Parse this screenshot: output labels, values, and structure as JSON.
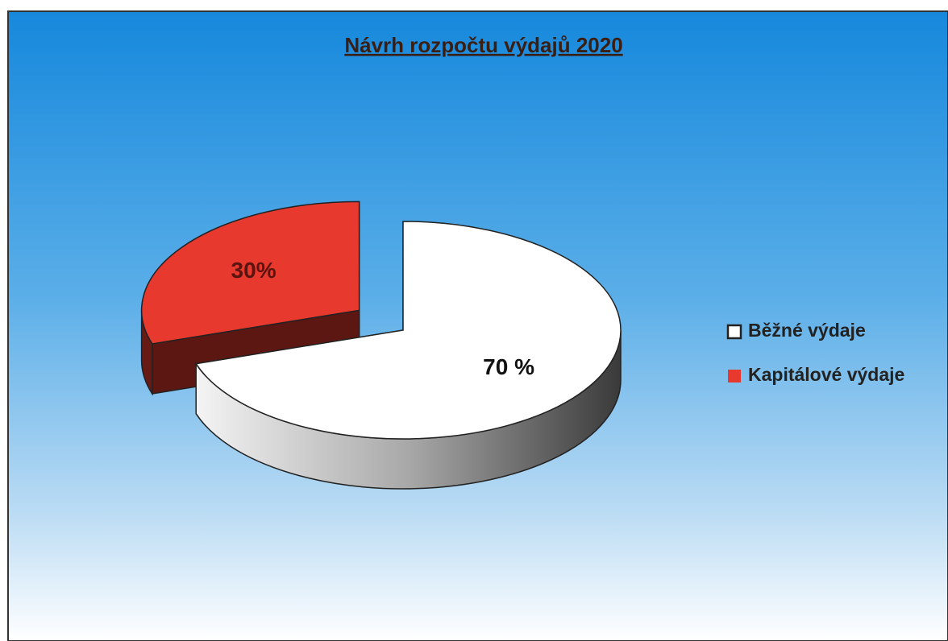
{
  "chart_data": {
    "type": "pie3d",
    "title": "Návrh rozpočtu výdajů 2020",
    "categories": [
      "Běžné výdaje",
      "Kapitálové výdaje"
    ],
    "values": [
      70,
      30
    ],
    "value_labels": [
      "70 %",
      "30%"
    ],
    "colors": [
      "#ffffff",
      "#e8392e"
    ],
    "exploded": [
      false,
      true
    ],
    "legend": "right"
  }
}
